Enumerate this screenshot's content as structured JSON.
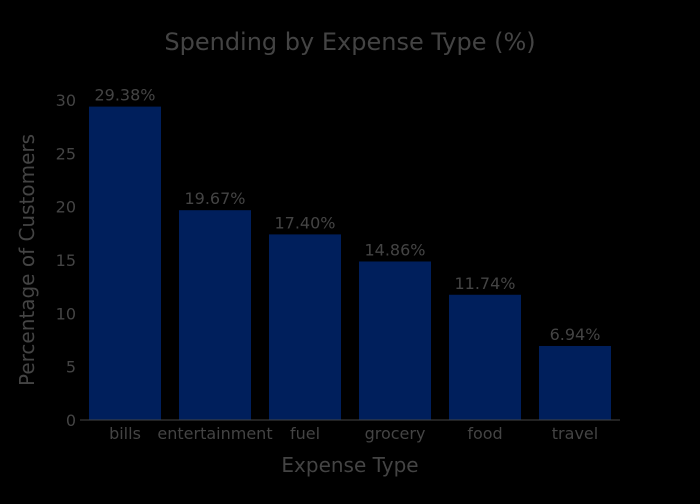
{
  "chart_data": {
    "type": "bar",
    "title": "Spending by Expense Type (%)",
    "xlabel": "Expense Type",
    "ylabel": "Percentage of Customers",
    "categories": [
      "bills",
      "entertainment",
      "fuel",
      "grocery",
      "food",
      "travel"
    ],
    "values": [
      29.38,
      19.67,
      17.4,
      14.86,
      11.74,
      6.94
    ],
    "data_labels": [
      "29.38%",
      "19.67%",
      "17.40%",
      "14.86%",
      "11.74%",
      "6.94%"
    ],
    "ylim": [
      0,
      30
    ],
    "yticks": [
      0,
      5,
      10,
      15,
      20,
      25,
      30
    ],
    "grid": false,
    "legend": "none",
    "colors": {
      "background": "#000000",
      "bar": "#001f5c",
      "text": "#444444",
      "axis_line": "#444444"
    }
  }
}
